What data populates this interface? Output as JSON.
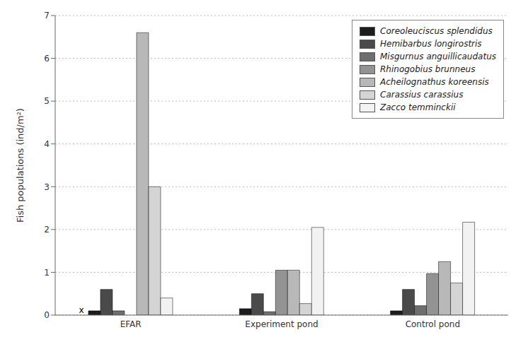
{
  "chart_data": {
    "type": "bar",
    "categories": [
      "EFAR",
      "Experiment pond",
      "Control pond"
    ],
    "series": [
      {
        "name": "Coreoleuciscus splendidus",
        "color": "#1c1c1c",
        "values": [
          0.1,
          0.15,
          0.1
        ]
      },
      {
        "name": "Hemibarbus longirostris",
        "color": "#4a4a4a",
        "values": [
          0.6,
          0.5,
          0.6
        ]
      },
      {
        "name": "Misgurnus anguillicaudatus",
        "color": "#6e6e6e",
        "values": [
          0.1,
          0.08,
          0.22
        ]
      },
      {
        "name": "Rhinogobius brunneus",
        "color": "#939393",
        "values": [
          0.0,
          1.05,
          0.97
        ]
      },
      {
        "name": "Acheilognathus koreensis",
        "color": "#b8b8b8",
        "values": [
          6.6,
          1.05,
          1.25
        ]
      },
      {
        "name": "Carassius carassius",
        "color": "#d4d4d4",
        "values": [
          3.0,
          0.27,
          0.75
        ]
      },
      {
        "name": "Zacco temminckii",
        "color": "#f2f2f2",
        "values": [
          0.4,
          2.05,
          2.17
        ]
      }
    ],
    "ylabel": "Fish populations (ind/m²)",
    "ylim": [
      0,
      7
    ],
    "yticks": [
      0,
      1,
      2,
      3,
      4,
      5,
      6,
      7
    ],
    "grid": true,
    "legend": "upper right",
    "annotations": [
      {
        "text": "x",
        "category": "EFAR"
      }
    ]
  }
}
